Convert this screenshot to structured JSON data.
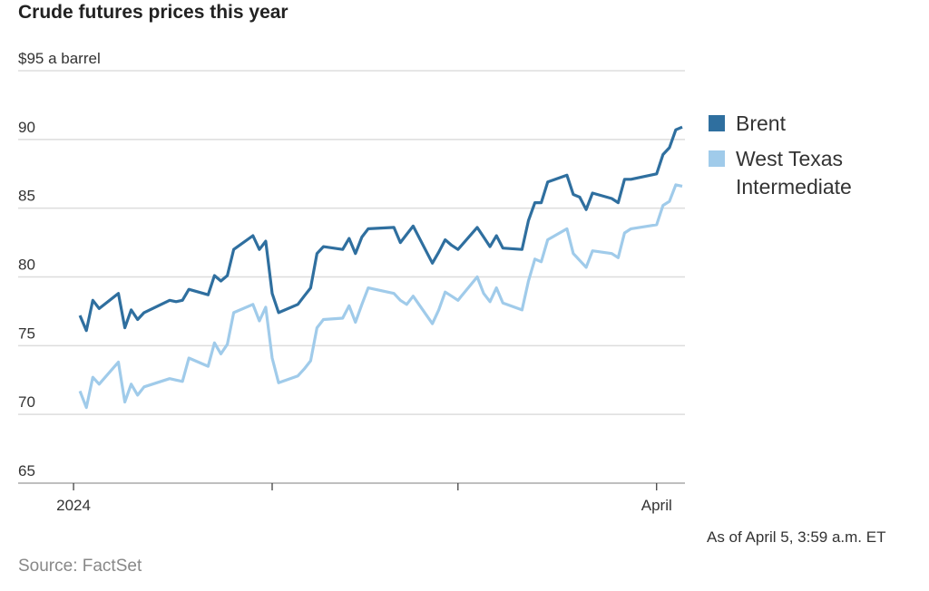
{
  "chart_data": {
    "type": "line",
    "title": "Crude futures prices this year",
    "ylabel_unit": "$95 a barrel",
    "ylim": [
      65,
      95
    ],
    "yticks": [
      65,
      70,
      75,
      80,
      85,
      90,
      95
    ],
    "ytick_labels": [
      "65",
      "70",
      "75",
      "80",
      "85",
      "90",
      "$95 a barrel"
    ],
    "xticks": [
      {
        "date": "2024-01-01",
        "label": "2024"
      },
      {
        "date": "2024-02-01",
        "label": ""
      },
      {
        "date": "2024-03-01",
        "label": ""
      },
      {
        "date": "2024-04-01",
        "label": "April"
      }
    ],
    "grid": true,
    "legend_position": "right",
    "dates": [
      "2024-01-02",
      "2024-01-03",
      "2024-01-04",
      "2024-01-05",
      "2024-01-08",
      "2024-01-09",
      "2024-01-10",
      "2024-01-11",
      "2024-01-12",
      "2024-01-16",
      "2024-01-17",
      "2024-01-18",
      "2024-01-19",
      "2024-01-22",
      "2024-01-23",
      "2024-01-24",
      "2024-01-25",
      "2024-01-26",
      "2024-01-29",
      "2024-01-30",
      "2024-01-31",
      "2024-02-01",
      "2024-02-02",
      "2024-02-05",
      "2024-02-06",
      "2024-02-07",
      "2024-02-08",
      "2024-02-09",
      "2024-02-12",
      "2024-02-13",
      "2024-02-14",
      "2024-02-15",
      "2024-02-16",
      "2024-02-20",
      "2024-02-21",
      "2024-02-22",
      "2024-02-23",
      "2024-02-26",
      "2024-02-27",
      "2024-02-28",
      "2024-02-29",
      "2024-03-01",
      "2024-03-04",
      "2024-03-05",
      "2024-03-06",
      "2024-03-07",
      "2024-03-08",
      "2024-03-11",
      "2024-03-12",
      "2024-03-13",
      "2024-03-14",
      "2024-03-15",
      "2024-03-18",
      "2024-03-19",
      "2024-03-20",
      "2024-03-21",
      "2024-03-22",
      "2024-03-25",
      "2024-03-26",
      "2024-03-27",
      "2024-03-28",
      "2024-04-01",
      "2024-04-02",
      "2024-04-03",
      "2024-04-04",
      "2024-04-05"
    ],
    "series": [
      {
        "name": "Brent",
        "color": "#2f6f9f",
        "values": [
          77.2,
          76.1,
          78.3,
          77.7,
          78.8,
          76.3,
          77.6,
          76.9,
          77.4,
          78.3,
          78.2,
          78.3,
          79.1,
          78.7,
          80.1,
          79.7,
          80.1,
          82.0,
          83.0,
          82.0,
          82.6,
          78.8,
          77.4,
          78.0,
          78.6,
          79.2,
          81.7,
          82.2,
          82.0,
          82.8,
          81.7,
          82.9,
          83.5,
          83.6,
          82.5,
          83.1,
          83.7,
          81.0,
          81.8,
          82.7,
          82.3,
          82.0,
          83.6,
          82.9,
          82.2,
          83.0,
          82.1,
          82.0,
          84.1,
          85.4,
          85.4,
          86.9,
          87.4,
          86.0,
          85.8,
          84.9,
          86.1,
          85.7,
          85.4,
          87.1,
          87.1,
          87.5,
          88.9,
          89.4,
          90.7,
          90.9
        ]
      },
      {
        "name": "West Texas Intermediate",
        "color": "#a0cbea",
        "values": [
          71.7,
          70.5,
          72.7,
          72.2,
          73.8,
          70.9,
          72.2,
          71.4,
          72.0,
          72.6,
          72.5,
          72.4,
          74.1,
          73.5,
          75.2,
          74.4,
          75.1,
          77.4,
          78.0,
          76.8,
          77.8,
          74.1,
          72.3,
          72.8,
          73.3,
          73.9,
          76.3,
          76.9,
          77.0,
          77.9,
          76.7,
          78.0,
          79.2,
          78.8,
          78.3,
          78.0,
          78.6,
          76.6,
          77.6,
          78.9,
          78.6,
          78.3,
          80.0,
          78.8,
          78.2,
          79.2,
          78.1,
          77.6,
          79.7,
          81.3,
          81.1,
          82.7,
          83.5,
          81.7,
          81.2,
          80.7,
          81.9,
          81.7,
          81.4,
          83.2,
          83.5,
          83.8,
          85.2,
          85.5,
          86.7,
          86.6
        ]
      }
    ],
    "legend": [
      "Brent",
      "West Texas",
      "Intermediate"
    ],
    "note": "As of April 5, 3:59 a.m. ET",
    "source": "Source: FactSet"
  }
}
